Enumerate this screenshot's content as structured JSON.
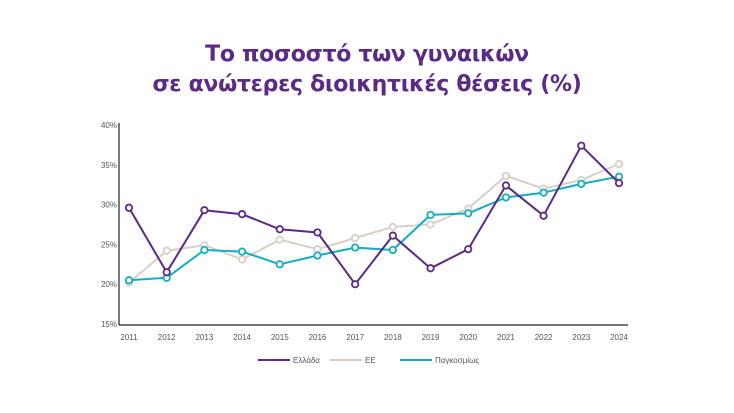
{
  "title": {
    "line1": "Το ποσοστό των γυναικών",
    "line2": "σε ανώτερες διοικητικές θέσεις (%)"
  },
  "chart_data": {
    "type": "line",
    "title": "Το ποσοστό των γυναικών σε ανώτερες διοικητικές θέσεις (%)",
    "xlabel": "",
    "ylabel": "",
    "ylim": [
      15,
      40
    ],
    "y_ticks": [
      "15%",
      "20%",
      "25%",
      "30%",
      "35%",
      "40%"
    ],
    "grid": false,
    "legend_position": "bottom",
    "categories": [
      "2011",
      "2012",
      "2013",
      "2014",
      "2015",
      "2016",
      "2017",
      "2018",
      "2019",
      "2020",
      "2021",
      "2022",
      "2023",
      "2024"
    ],
    "series": [
      {
        "name": "Ελλάδα",
        "color": "#5b2a86",
        "values": [
          29.6,
          21.5,
          29.3,
          28.8,
          26.9,
          26.5,
          20.0,
          26.1,
          22.0,
          24.4,
          32.4,
          28.6,
          37.4,
          32.7
        ]
      },
      {
        "name": "ΕΕ",
        "color": "#d8d0c8",
        "values": [
          20.2,
          24.2,
          24.9,
          23.1,
          25.6,
          24.4,
          25.8,
          27.2,
          27.5,
          29.5,
          33.6,
          32.0,
          33.1,
          35.1
        ]
      },
      {
        "name": "Παγκοσμίως",
        "color": "#14adc2",
        "values": [
          20.5,
          20.8,
          24.3,
          24.1,
          22.5,
          23.6,
          24.6,
          24.3,
          28.7,
          28.9,
          30.9,
          31.5,
          32.6,
          33.5
        ]
      }
    ]
  },
  "legend": [
    {
      "label": "Ελλάδα",
      "color": "#5b2a86"
    },
    {
      "label": "ΕΕ",
      "color": "#d8d0c8"
    },
    {
      "label": "Παγκοσμίως",
      "color": "#14adc2"
    }
  ]
}
